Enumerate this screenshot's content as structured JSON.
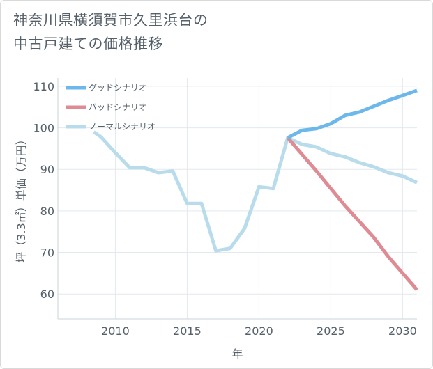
{
  "page": {
    "title_line1": "神奈川県横須賀市久里浜台の",
    "title_line2": "中古戸建ての価格推移"
  },
  "chart_data": {
    "type": "line",
    "title": "神奈川県横須賀市久里浜台の中古戸建ての価格推移",
    "xlabel": "年",
    "ylabel": "坪（3.3㎡）単価（万円）",
    "xlim": [
      2006,
      2031
    ],
    "ylim": [
      54,
      112
    ],
    "x_ticks": [
      2010,
      2015,
      2020,
      2025,
      2030
    ],
    "y_ticks": [
      60,
      70,
      80,
      90,
      100,
      110
    ],
    "grid": true,
    "legend_position": "top-left",
    "series": [
      {
        "name": "グッドシナリオ",
        "color": "#6db8ea",
        "x": [
          2022,
          2023,
          2024,
          2025,
          2026,
          2027,
          2028,
          2029,
          2030,
          2031
        ],
        "y": [
          97.6,
          99.4,
          99.8,
          101.0,
          103.0,
          103.8,
          105.2,
          106.6,
          107.8,
          109.0
        ]
      },
      {
        "name": "バッドシナリオ",
        "color": "#de8b93",
        "x": [
          2022,
          2023,
          2024,
          2025,
          2026,
          2027,
          2028,
          2029,
          2030,
          2031
        ],
        "y": [
          97.6,
          93.6,
          89.6,
          85.4,
          81.2,
          77.4,
          73.6,
          69.0,
          65.0,
          61.0
        ]
      },
      {
        "name": "ノーマルシナリオ",
        "color": "#b8dcec",
        "x": [
          2008.5,
          2009,
          2010,
          2011,
          2012,
          2013,
          2014,
          2015,
          2016,
          2017,
          2018,
          2019,
          2020,
          2021,
          2022,
          2023,
          2024,
          2025,
          2026,
          2027,
          2028,
          2029,
          2030,
          2031
        ],
        "y": [
          99.0,
          97.8,
          94.0,
          90.4,
          90.4,
          89.2,
          89.6,
          81.8,
          81.8,
          70.4,
          71.0,
          75.8,
          85.8,
          85.4,
          97.6,
          96.0,
          95.4,
          93.8,
          93.0,
          91.6,
          90.6,
          89.2,
          88.4,
          86.8
        ]
      }
    ]
  }
}
